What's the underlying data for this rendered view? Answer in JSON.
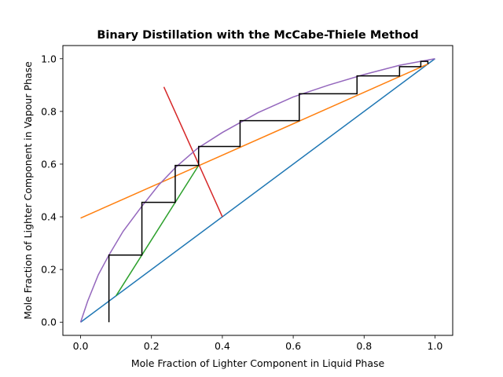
{
  "chart_data": {
    "type": "line",
    "title": "Binary Distillation with the McCabe-Thiele Method",
    "xlabel": "Mole Fraction of Lighter Component in Liquid Phase",
    "ylabel": "Mole Fraction of Lighter Component in Vapour Phase",
    "xlim": [
      -0.05,
      1.05
    ],
    "ylim": [
      -0.05,
      1.05
    ],
    "x_ticks": [
      "0.0",
      "0.2",
      "0.4",
      "0.6",
      "0.8",
      "1.0"
    ],
    "y_ticks": [
      "0.0",
      "0.2",
      "0.4",
      "0.6",
      "0.8",
      "1.0"
    ],
    "grid": false,
    "colors": {
      "diagonal": "#1f77b4",
      "rectifying": "#ff7f0e",
      "stripping": "#2ca02c",
      "q_line": "#d62728",
      "equilibrium": "#9467bd",
      "stages": "#000000"
    },
    "series": [
      {
        "key": "diagonal",
        "x": [
          0,
          1
        ],
        "y": [
          0,
          1
        ]
      },
      {
        "key": "rectifying",
        "x": [
          0,
          0.98
        ],
        "y": [
          0.395,
          0.98
        ]
      },
      {
        "key": "stripping",
        "x": [
          0.1,
          0.333
        ],
        "y": [
          0.1,
          0.595
        ]
      },
      {
        "key": "q_line",
        "x": [
          0.235,
          0.4
        ],
        "y": [
          0.893,
          0.4
        ]
      },
      {
        "key": "equilibrium",
        "x": [
          0,
          0.02,
          0.05,
          0.08,
          0.12,
          0.17,
          0.22,
          0.27,
          0.33,
          0.4,
          0.5,
          0.6,
          0.7,
          0.8,
          0.9,
          1.0
        ],
        "y": [
          0,
          0.08,
          0.18,
          0.255,
          0.345,
          0.435,
          0.52,
          0.59,
          0.66,
          0.72,
          0.795,
          0.855,
          0.9,
          0.94,
          0.975,
          1.0
        ]
      },
      {
        "key": "stages",
        "x": [
          0.98,
          0.98,
          0.96,
          0.96,
          0.9,
          0.9,
          0.78,
          0.78,
          0.617,
          0.617,
          0.45,
          0.45,
          0.333,
          0.333,
          0.267,
          0.267,
          0.173,
          0.173,
          0.08,
          0.08
        ],
        "y": [
          0.98,
          0.99,
          0.99,
          0.97,
          0.97,
          0.935,
          0.935,
          0.867,
          0.867,
          0.765,
          0.765,
          0.667,
          0.667,
          0.595,
          0.595,
          0.455,
          0.455,
          0.255,
          0.255,
          0.0
        ]
      }
    ]
  }
}
